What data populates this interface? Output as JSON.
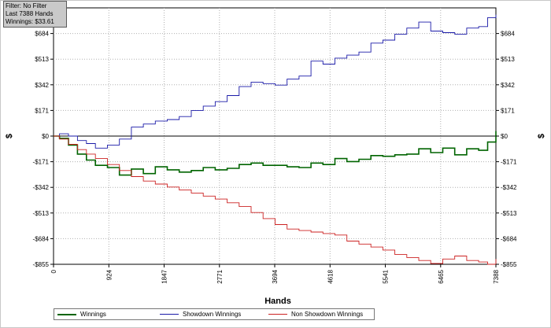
{
  "filter": {
    "line1": "Filter: No Filter",
    "line2": "Last  7388 Hands",
    "line3": "Winnings: $33.61"
  },
  "chart_data": {
    "type": "line",
    "xlabel": "Hands",
    "ylabel": "$",
    "xlim": [
      0,
      7388
    ],
    "ylim": [
      -855,
      855
    ],
    "x_ticks": [
      0,
      924,
      1847,
      2771,
      3694,
      4618,
      5541,
      6465,
      7388
    ],
    "y_ticks": [
      {
        "value": 684,
        "label": "$684"
      },
      {
        "value": 513,
        "label": "$513"
      },
      {
        "value": 342,
        "label": "$342"
      },
      {
        "value": 171,
        "label": "$171"
      },
      {
        "value": 0,
        "label": "$0"
      },
      {
        "value": -171,
        "label": "-$171"
      },
      {
        "value": -342,
        "label": "-$342"
      },
      {
        "value": -513,
        "label": "-$513"
      },
      {
        "value": -684,
        "label": "-$684"
      },
      {
        "value": -855,
        "label": "-$855"
      }
    ],
    "grid": true,
    "legend_position": "bottom",
    "series": [
      {
        "name": "Winnings",
        "color": "#006400",
        "x": [
          0,
          100,
          250,
          400,
          550,
          700,
          900,
          1100,
          1300,
          1500,
          1700,
          1900,
          2100,
          2300,
          2500,
          2700,
          2900,
          3100,
          3300,
          3500,
          3700,
          3900,
          4100,
          4300,
          4500,
          4700,
          4900,
          5100,
          5300,
          5500,
          5700,
          5900,
          6100,
          6300,
          6500,
          6700,
          6900,
          7100,
          7250,
          7388
        ],
        "values": [
          0,
          -15,
          -60,
          -120,
          -160,
          -195,
          -210,
          -260,
          -220,
          -250,
          -205,
          -225,
          -240,
          -230,
          -210,
          -225,
          -215,
          -190,
          -180,
          -195,
          -195,
          -205,
          -210,
          -180,
          -190,
          -150,
          -170,
          -155,
          -130,
          -135,
          -125,
          -120,
          -85,
          -110,
          -80,
          -125,
          -85,
          -95,
          -40,
          33.61
        ]
      },
      {
        "name": "Showdown Winnings",
        "color": "#1a1aa8",
        "x": [
          0,
          100,
          250,
          400,
          550,
          700,
          900,
          1100,
          1300,
          1500,
          1700,
          1900,
          2100,
          2300,
          2500,
          2700,
          2900,
          3100,
          3300,
          3500,
          3700,
          3900,
          4100,
          4300,
          4500,
          4700,
          4900,
          5100,
          5300,
          5500,
          5700,
          5900,
          6100,
          6300,
          6500,
          6700,
          6900,
          7100,
          7250,
          7388
        ],
        "values": [
          0,
          15,
          0,
          -30,
          -50,
          -80,
          -60,
          -20,
          60,
          80,
          100,
          110,
          130,
          170,
          200,
          230,
          270,
          330,
          360,
          350,
          340,
          380,
          400,
          500,
          480,
          520,
          540,
          560,
          620,
          640,
          680,
          720,
          760,
          700,
          690,
          680,
          720,
          730,
          790,
          810
        ]
      },
      {
        "name": "Non Showdown Winnings",
        "color": "#cc2222",
        "x": [
          0,
          100,
          250,
          400,
          550,
          700,
          900,
          1100,
          1300,
          1500,
          1700,
          1900,
          2100,
          2300,
          2500,
          2700,
          2900,
          3100,
          3300,
          3500,
          3700,
          3900,
          4100,
          4300,
          4500,
          4700,
          4900,
          5100,
          5300,
          5500,
          5700,
          5900,
          6100,
          6300,
          6500,
          6700,
          6900,
          7100,
          7250,
          7388
        ],
        "values": [
          0,
          -20,
          -55,
          -90,
          -120,
          -150,
          -190,
          -230,
          -270,
          -300,
          -320,
          -340,
          -360,
          -380,
          -400,
          -420,
          -445,
          -470,
          -510,
          -550,
          -590,
          -620,
          -630,
          -640,
          -650,
          -660,
          -700,
          -720,
          -740,
          -760,
          -790,
          -810,
          -830,
          -850,
          -820,
          -800,
          -830,
          -840,
          -855,
          -820
        ]
      }
    ]
  }
}
